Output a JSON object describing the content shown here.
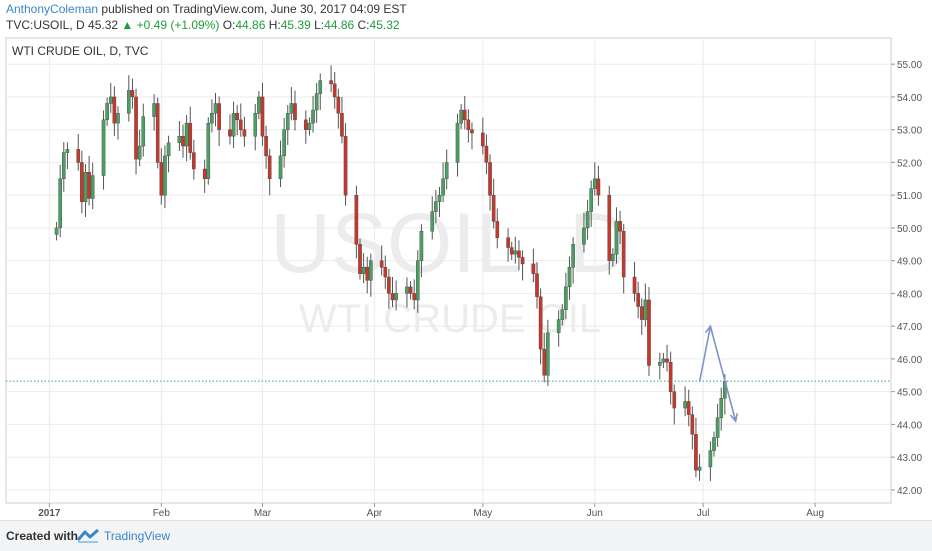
{
  "header": {
    "author": "AnthonyColeman",
    "published": " published on TradingView.com, June 30, 2017 04:09 EST",
    "symbol_line": "TVC:USOIL, D  45.32",
    "change": "+0.49 (+1.09%)",
    "o_label": "O:",
    "o_value": "44.86",
    "h_label": "H:",
    "h_value": "45.39",
    "l_label": "L:",
    "l_value": "44.86",
    "c_label": "C:",
    "c_value": "45.32"
  },
  "footer": {
    "created_with": "Created with",
    "brand": "TradingView"
  },
  "colors": {
    "up": "#4aa062",
    "down": "#c9372c",
    "arrow": "#7e95c8",
    "grid": "#ebebeb"
  },
  "chart_data": {
    "type": "candlestick",
    "title": "WTI CRUDE OIL, D, TVC",
    "watermark": [
      "USOIL, D",
      "WTI CRUDE OIL"
    ],
    "ylim": [
      41.6,
      55.8
    ],
    "y_ticks": [
      "42.00",
      "43.00",
      "44.00",
      "45.00",
      "46.00",
      "47.00",
      "48.00",
      "49.00",
      "50.00",
      "51.00",
      "52.00",
      "53.00",
      "54.00",
      "55.00"
    ],
    "x_ticks": [
      "2017",
      "Feb",
      "Mar",
      "Apr",
      "May",
      "Jun",
      "Jul",
      "Aug"
    ],
    "x_tick_dates": [
      "2017-01-01",
      "2017-02-01",
      "2017-03-01",
      "2017-04-01",
      "2017-05-01",
      "2017-06-01",
      "2017-07-01",
      "2017-08-01"
    ],
    "xlim": [
      "2016-12-20",
      "2017-08-22"
    ],
    "last_price_line": 45.32,
    "grid": true,
    "closes": [
      50.0,
      51.5,
      52.3,
      52.4,
      52.0,
      50.8,
      51.7,
      50.9,
      51.6,
      53.3,
      53.8,
      54.0,
      53.2,
      53.5,
      54.2,
      54.0,
      52.1,
      52.5,
      53.4,
      53.8,
      52.0,
      51.0,
      52.2,
      52.6,
      52.8,
      52.5,
      53.2,
      52.3,
      51.8,
      51.5,
      53.2,
      53.5,
      53.8,
      53.0,
      52.8,
      53.5,
      53.3,
      53.0,
      52.8,
      53.5,
      54.0,
      52.8,
      52.2,
      51.5,
      52.2,
      53.0,
      53.5,
      53.8,
      53.3,
      53.0,
      53.2,
      53.6,
      54.1,
      54.5,
      54.4,
      54.0,
      53.5,
      52.8,
      51.0,
      49.5,
      48.6,
      48.8,
      48.4,
      49.0,
      48.8,
      48.5,
      48.0,
      47.8,
      48.0,
      48.2,
      48.0,
      47.8,
      49.0,
      49.9,
      50.5,
      50.8,
      51.0,
      51.5,
      52.0,
      53.2,
      53.6,
      53.3,
      53.0,
      52.9,
      52.5,
      52.0,
      51.0,
      50.2,
      49.7,
      49.4,
      49.2,
      49.3,
      49.1,
      48.9,
      48.6,
      47.9,
      46.3,
      45.5,
      46.8,
      47.2,
      47.5,
      48.2,
      48.8,
      49.5,
      50.0,
      50.5,
      51.2,
      51.5,
      51.0,
      49.0,
      49.2,
      50.2,
      49.9,
      48.5,
      48.0,
      47.6,
      47.2,
      47.8,
      45.8,
      45.9,
      46.0,
      45.9,
      45.0,
      44.5,
      44.7,
      44.3,
      43.7,
      42.6,
      42.7,
      43.2,
      43.6,
      44.2,
      44.8,
      45.32
    ],
    "arrow_path": [
      [
        "2017-06-30",
        45.3
      ],
      [
        "2017-07-03",
        47.0
      ],
      [
        "2017-07-10",
        44.1
      ]
    ]
  }
}
